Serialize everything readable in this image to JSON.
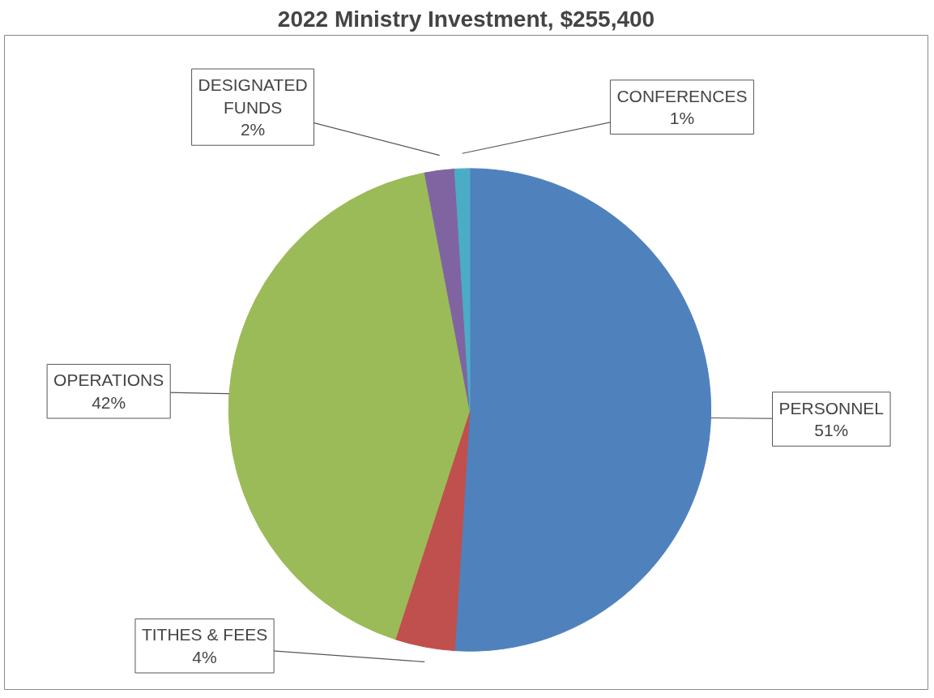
{
  "chart_data": {
    "type": "pie",
    "title": "2022 Ministry Investment, $255,400",
    "categories": [
      "PERSONNEL",
      "TITHES & FEES",
      "OPERATIONS",
      "DESIGNATED FUNDS",
      "CONFERENCES"
    ],
    "values": [
      51,
      4,
      42,
      2,
      1
    ],
    "colors": [
      "#4f81bd",
      "#c0504d",
      "#9bbb59",
      "#8064a2",
      "#4bacc6"
    ],
    "value_labels": [
      "51%",
      "4%",
      "42%",
      "2%",
      "1%"
    ]
  }
}
